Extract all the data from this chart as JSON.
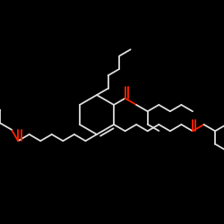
{
  "background_color": "#000000",
  "line_color": "#dddddd",
  "oxygen_color": "#ff2200",
  "line_width": 1.3,
  "figsize": [
    2.5,
    2.5
  ],
  "dpi": 100
}
